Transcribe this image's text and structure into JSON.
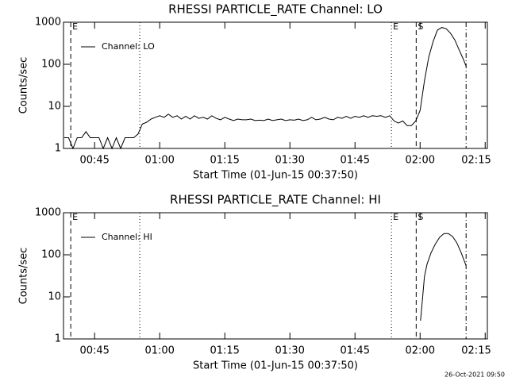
{
  "chart_data": [
    {
      "type": "line",
      "title": "RHESSI PARTICLE_RATE Channel: LO",
      "xlabel": "Start Time (01-Jun-15 00:37:50)",
      "ylabel": "Counts/sec",
      "log_y": true,
      "ylim": [
        1,
        1000
      ],
      "yticks": [
        1,
        10,
        100,
        1000
      ],
      "xlim": [
        37.83,
        135.5
      ],
      "xticks": [
        {
          "value": 45,
          "label": "00:45"
        },
        {
          "value": 60,
          "label": "01:00"
        },
        {
          "value": 75,
          "label": "01:15"
        },
        {
          "value": 90,
          "label": "01:30"
        },
        {
          "value": 105,
          "label": "01:45"
        },
        {
          "value": 120,
          "label": "02:00"
        },
        {
          "value": 135,
          "label": "02:15"
        }
      ],
      "legend": "upper left",
      "markers": [
        {
          "x": 39.5,
          "style": "dashed",
          "label": "E"
        },
        {
          "x": 55.4,
          "style": "dotted"
        },
        {
          "x": 113.4,
          "style": "dotted",
          "label": "E"
        },
        {
          "x": 119.1,
          "style": "dashed",
          "label": "S"
        },
        {
          "x": 130.6,
          "style": "dashdot"
        }
      ],
      "series": [
        {
          "name": "Channel: LO",
          "color": "#000000",
          "x": [
            38,
            39,
            40,
            41,
            42,
            43,
            44,
            45,
            46,
            47,
            48,
            49,
            50,
            51,
            52,
            53,
            54,
            55,
            56,
            57,
            58,
            59,
            60,
            61,
            62,
            63,
            64,
            65,
            66,
            67,
            68,
            69,
            70,
            71,
            72,
            73,
            74,
            75,
            76,
            77,
            78,
            79,
            80,
            81,
            82,
            83,
            84,
            85,
            86,
            87,
            88,
            89,
            90,
            91,
            92,
            93,
            94,
            95,
            96,
            97,
            98,
            99,
            100,
            101,
            102,
            103,
            104,
            105,
            106,
            107,
            108,
            109,
            110,
            111,
            112,
            113,
            114,
            115,
            116,
            117,
            118,
            119,
            120,
            121,
            122,
            123,
            124,
            125,
            126,
            127,
            128,
            129,
            130,
            130.6
          ],
          "values": [
            1.8,
            1.8,
            1,
            1.8,
            1.8,
            2.5,
            1.8,
            1.8,
            1.8,
            1,
            1.8,
            1,
            1.8,
            1,
            1.8,
            1.8,
            1.8,
            2.2,
            3.8,
            4.2,
            5,
            5.5,
            6,
            5.5,
            6.5,
            5.5,
            6,
            5,
            5.8,
            5,
            6,
            5.2,
            5.5,
            5,
            6,
            5.2,
            4.8,
            5.5,
            5,
            4.6,
            5,
            4.8,
            4.8,
            5,
            4.6,
            4.7,
            4.6,
            5,
            4.6,
            4.8,
            5,
            4.6,
            4.8,
            4.7,
            5,
            4.6,
            4.8,
            5.5,
            4.8,
            5,
            5.5,
            5,
            4.8,
            5.5,
            5.2,
            5.8,
            5.2,
            5.8,
            5.5,
            6,
            5.5,
            6,
            5.8,
            6,
            5.5,
            6,
            4.5,
            4,
            4.5,
            3.5,
            3.5,
            4.5,
            8,
            40,
            150,
            350,
            650,
            750,
            700,
            550,
            380,
            220,
            130,
            90
          ]
        }
      ]
    },
    {
      "type": "line",
      "title": "RHESSI PARTICLE_RATE Channel: HI",
      "xlabel": "Start Time (01-Jun-15 00:37:50)",
      "ylabel": "Counts/sec",
      "log_y": true,
      "ylim": [
        1,
        1000
      ],
      "yticks": [
        1,
        10,
        100,
        1000
      ],
      "xlim": [
        37.83,
        135.5
      ],
      "xticks": [
        {
          "value": 45,
          "label": "00:45"
        },
        {
          "value": 60,
          "label": "01:00"
        },
        {
          "value": 75,
          "label": "01:15"
        },
        {
          "value": 90,
          "label": "01:30"
        },
        {
          "value": 105,
          "label": "01:45"
        },
        {
          "value": 120,
          "label": "02:00"
        },
        {
          "value": 135,
          "label": "02:15"
        }
      ],
      "legend": "upper left",
      "markers": [
        {
          "x": 39.5,
          "style": "dashed",
          "label": "E"
        },
        {
          "x": 55.4,
          "style": "dotted"
        },
        {
          "x": 113.4,
          "style": "dotted",
          "label": "E"
        },
        {
          "x": 119.1,
          "style": "dashed",
          "label": "S"
        },
        {
          "x": 130.6,
          "style": "dashdot"
        }
      ],
      "series": [
        {
          "name": "Channel: HI",
          "color": "#000000",
          "x": [
            120.1,
            120.6,
            121,
            121.6,
            122.5,
            123.5,
            124.5,
            125.5,
            126.5,
            127.5,
            128.5,
            129.5,
            130.6
          ],
          "values": [
            2.7,
            10,
            30,
            60,
            110,
            180,
            260,
            320,
            320,
            270,
            190,
            110,
            55
          ]
        }
      ]
    }
  ],
  "footer": "26-Oct-2021 09:50"
}
